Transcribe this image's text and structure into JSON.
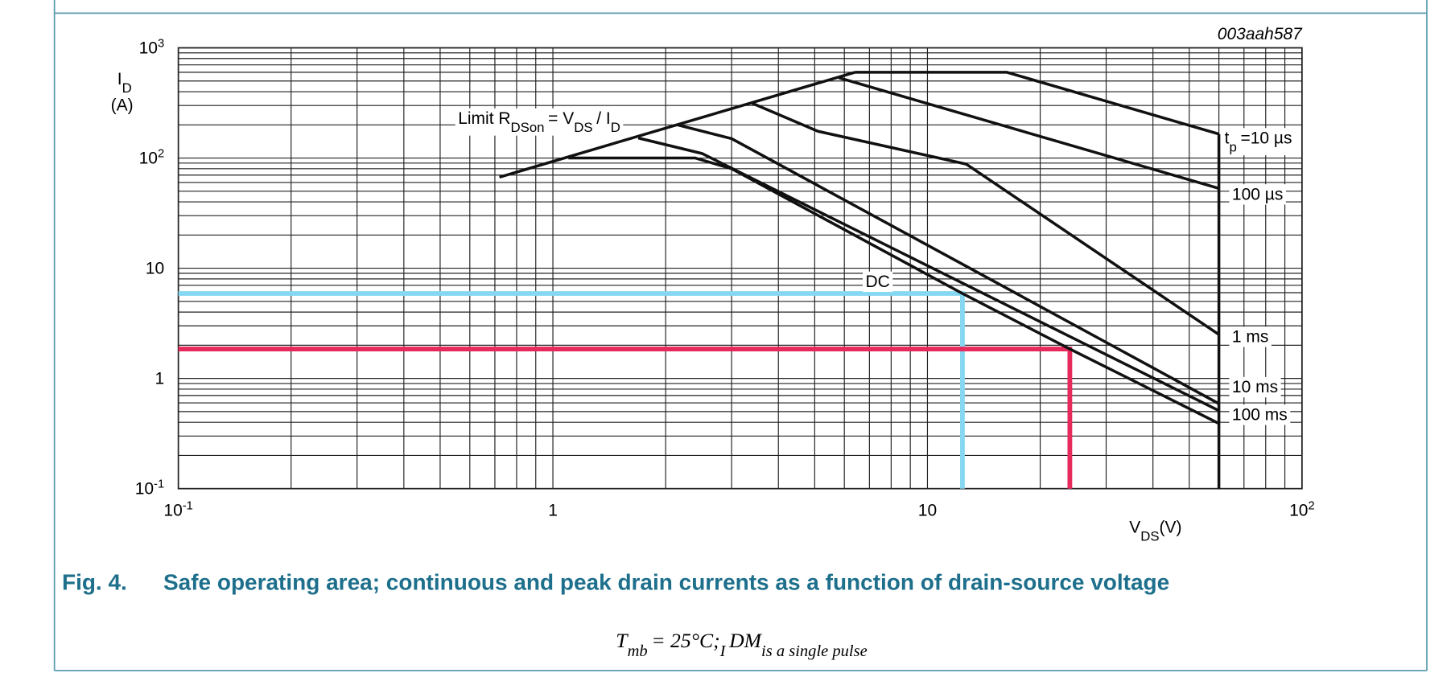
{
  "chart_data": {
    "type": "line",
    "code": "003aah587",
    "y_label": [
      "I",
      "D",
      "(A)"
    ],
    "x_label": [
      "V",
      "DS",
      "(V)"
    ],
    "xlog": true,
    "ylog": true,
    "grid": true,
    "minor_grid": true,
    "xlim": [
      0.1,
      100
    ],
    "ylim": [
      0.1,
      1000
    ],
    "xticks": [
      {
        "value": 0.1,
        "label": "10",
        "sup": "-1"
      },
      1,
      10,
      {
        "value": 100,
        "label": "10",
        "sup": "2"
      }
    ],
    "yticks": [
      {
        "value": 0.1,
        "label": "10",
        "sup": "-1"
      },
      1,
      10,
      {
        "value": 100,
        "label": "10",
        "sup": "2"
      },
      {
        "value": 1000,
        "label": "10",
        "sup": "3"
      }
    ],
    "annotation": [
      "Limit R",
      "DSon",
      "= V",
      "DS",
      "/ I",
      "D"
    ],
    "series": [
      {
        "color": "#111111",
        "x": [
          0.72,
          6.4
        ],
        "values": [
          67,
          600
        ]
      },
      {
        "label": [
          "t",
          "p",
          "=10 µs"
        ],
        "color": "#111111",
        "x": [
          6.4,
          16.3,
          60
        ],
        "values": [
          600,
          600,
          165
        ]
      },
      {
        "name": "100 µs",
        "color": "#111111",
        "x": [
          5.8,
          60
        ],
        "values": [
          535,
          53
        ]
      },
      {
        "name": "1 ms",
        "color": "#111111",
        "x": [
          3.4,
          5.1,
          12.7,
          60
        ],
        "values": [
          315,
          175,
          88,
          2.5
        ]
      },
      {
        "name": "10 ms",
        "color": "#111111",
        "x": [
          2.15,
          3,
          60
        ],
        "values": [
          200,
          150,
          0.59
        ]
      },
      {
        "name": "100 ms",
        "color": "#111111",
        "x": [
          1.69,
          2.5,
          60
        ],
        "values": [
          152,
          110,
          0.51
        ]
      },
      {
        "name": "DC",
        "color": "#111111",
        "x": [
          1.1,
          2.4,
          3,
          12.4,
          24,
          60
        ],
        "values": [
          100,
          100,
          80,
          5.9,
          1.85,
          0.39
        ]
      },
      {
        "color": "#111111",
        "x": [
          60,
          60
        ],
        "values": [
          0.1,
          165
        ]
      }
    ],
    "operating_points": [
      {
        "x": 12.4,
        "y": 5.9,
        "color": "#86d8f2"
      },
      {
        "x": 24,
        "y": 1.85,
        "color": "#e62a5c"
      }
    ],
    "fig_label": "Fig. 4.",
    "caption": "Safe operating area; continuous and peak drain currents as a function of drain-source voltage",
    "footer": [
      "T",
      "mb",
      "= 25°C;",
      "I",
      "DM",
      "is a single pulse"
    ]
  }
}
